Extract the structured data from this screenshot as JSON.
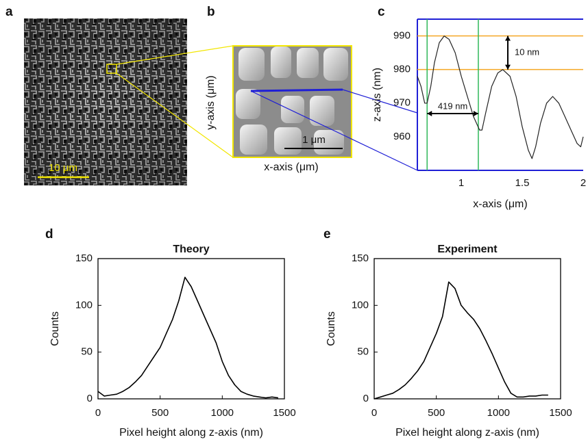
{
  "images": [
    {
      "panel": "a",
      "scale_bar": "10 μm"
    },
    {
      "panel": "b",
      "scale_bar": "1 μm",
      "xlabel": "x-axis (μm)",
      "ylabel": "y-axis (μm)"
    }
  ],
  "chart_data": [
    {
      "type": "line",
      "panel": "c",
      "xlabel": "x-axis (μm)",
      "ylabel": "z-axis (nm)",
      "x": [
        0.64,
        0.67,
        0.7,
        0.72,
        0.75,
        0.78,
        0.82,
        0.86,
        0.9,
        0.95,
        1.0,
        1.05,
        1.1,
        1.15,
        1.17,
        1.2,
        1.25,
        1.3,
        1.34,
        1.4,
        1.45,
        1.5,
        1.55,
        1.58,
        1.61,
        1.65,
        1.7,
        1.75,
        1.8,
        1.85,
        1.9,
        1.95,
        1.98,
        2.0
      ],
      "values": [
        978,
        975,
        970,
        970,
        975,
        982,
        988,
        990,
        989,
        985,
        978,
        972,
        966,
        962,
        962,
        967,
        975,
        979,
        980,
        978,
        972,
        963,
        956,
        953.5,
        957,
        964,
        970,
        972,
        970,
        966,
        962,
        958,
        957,
        960
      ],
      "color": "#222222",
      "axis_color": "#1f1fd6",
      "xlim": [
        0.64,
        2.0
      ],
      "xticks": [
        1,
        1.5,
        2
      ],
      "ylim": [
        950,
        995
      ],
      "yticks": [
        960,
        970,
        980,
        990
      ],
      "hlines": [
        990,
        980
      ],
      "hline_color": "#f5a623",
      "vlines": [
        0.72,
        1.14
      ],
      "vline_color": "#2fb85a",
      "annotations": [
        "10 nm",
        "419 nm"
      ]
    },
    {
      "type": "line",
      "panel": "d",
      "title": "Theory",
      "xlabel": "Pixel height along z-axis (nm)",
      "ylabel": "Counts",
      "x": [
        0,
        50,
        100,
        150,
        200,
        250,
        300,
        350,
        400,
        450,
        500,
        550,
        600,
        650,
        700,
        750,
        800,
        850,
        900,
        950,
        1000,
        1050,
        1100,
        1150,
        1200,
        1250,
        1300,
        1350,
        1400,
        1450
      ],
      "values": [
        8,
        3,
        4,
        5,
        8,
        12,
        18,
        25,
        35,
        45,
        55,
        70,
        85,
        105,
        130,
        120,
        105,
        90,
        75,
        60,
        40,
        25,
        15,
        8,
        5,
        3,
        2,
        1,
        2,
        1
      ],
      "color": "#000000",
      "axis_color": "#000000",
      "xlim": [
        0,
        1500
      ],
      "xticks": [
        0,
        500,
        1000,
        1500
      ],
      "ylim": [
        0,
        150
      ],
      "yticks": [
        0,
        50,
        100,
        150
      ]
    },
    {
      "type": "line",
      "panel": "e",
      "title": "Experiment",
      "xlabel": "Pixel height along z-axis (nm)",
      "ylabel": "Counts",
      "x": [
        0,
        50,
        100,
        150,
        200,
        250,
        300,
        350,
        400,
        450,
        500,
        550,
        600,
        650,
        700,
        750,
        800,
        850,
        900,
        950,
        1000,
        1050,
        1100,
        1150,
        1200,
        1250,
        1300,
        1350,
        1400
      ],
      "values": [
        0,
        2,
        4,
        6,
        10,
        15,
        22,
        30,
        40,
        55,
        70,
        88,
        125,
        118,
        100,
        92,
        85,
        75,
        62,
        48,
        33,
        18,
        6,
        2,
        2,
        3,
        3,
        4,
        4
      ],
      "color": "#000000",
      "axis_color": "#000000",
      "xlim": [
        0,
        1500
      ],
      "xticks": [
        0,
        500,
        1000,
        1500
      ],
      "ylim": [
        0,
        150
      ],
      "yticks": [
        0,
        50,
        100,
        150
      ]
    }
  ]
}
